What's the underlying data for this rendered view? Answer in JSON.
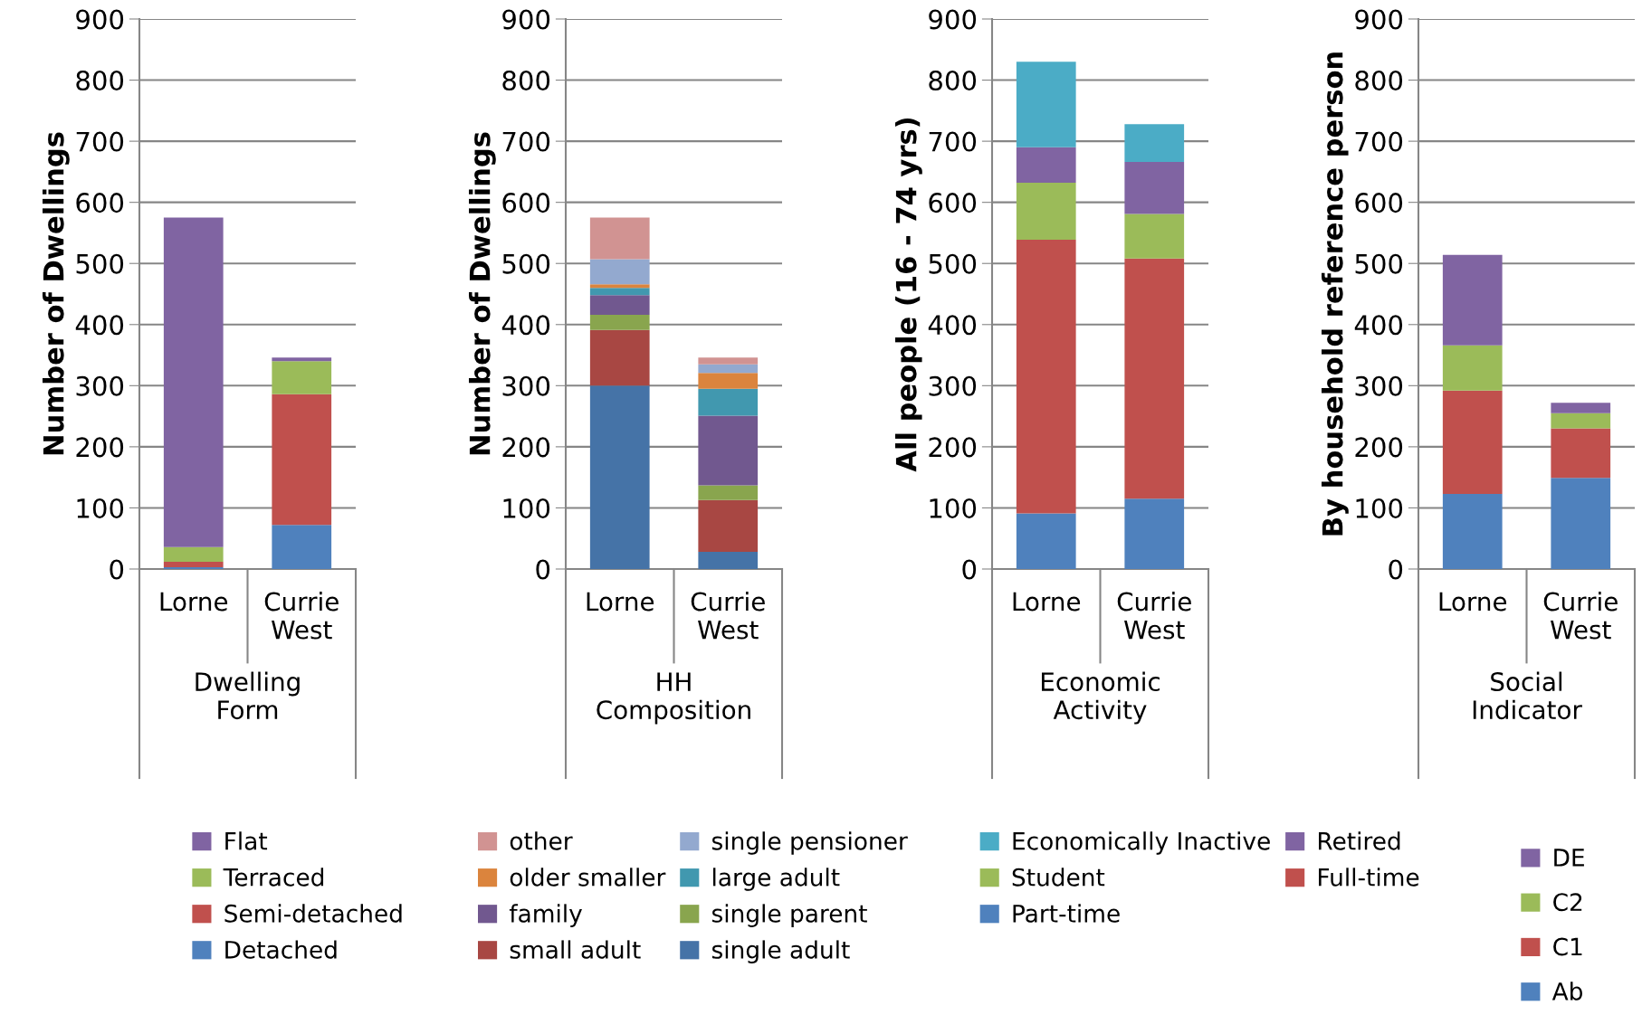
{
  "chart_data": [
    {
      "type": "bar",
      "stacked": true,
      "xlabel": "Dwelling Form",
      "ylabel": "Number of Dwellings",
      "categories": [
        "Lorne",
        "Currie West"
      ],
      "ylim": [
        0,
        900
      ],
      "yticks": [
        0,
        100,
        200,
        300,
        400,
        500,
        600,
        700,
        800,
        900
      ],
      "grid": "y",
      "legend": "bottom",
      "series": [
        {
          "name": "Detached",
          "color": "#4f81bd",
          "values": [
            3,
            72
          ]
        },
        {
          "name": "Semi-detached",
          "color": "#c0504d",
          "values": [
            9,
            214
          ]
        },
        {
          "name": "Terraced",
          "color": "#9bbb59",
          "values": [
            24,
            54
          ]
        },
        {
          "name": "Flat",
          "color": "#8064a2",
          "values": [
            539,
            6
          ]
        }
      ]
    },
    {
      "type": "bar",
      "stacked": true,
      "xlabel": "HH Composition",
      "ylabel": "Number of Dwellings",
      "categories": [
        "Lorne",
        "Currie West"
      ],
      "ylim": [
        0,
        900
      ],
      "yticks": [
        0,
        100,
        200,
        300,
        400,
        500,
        600,
        700,
        800,
        900
      ],
      "grid": "y",
      "legend": "bottom",
      "series": [
        {
          "name": "single adult",
          "color": "#4573a7",
          "values": [
            300,
            28
          ]
        },
        {
          "name": "small adult",
          "color": "#a84743",
          "values": [
            91,
            85
          ]
        },
        {
          "name": "single parent",
          "color": "#89a54e",
          "values": [
            25,
            24
          ]
        },
        {
          "name": "family",
          "color": "#71588f",
          "values": [
            32,
            114
          ]
        },
        {
          "name": "large adult",
          "color": "#4198af",
          "values": [
            12,
            44
          ]
        },
        {
          "name": "older smaller",
          "color": "#db843d",
          "values": [
            6,
            26
          ]
        },
        {
          "name": "single pensioner",
          "color": "#93a9cf",
          "values": [
            41,
            14
          ]
        },
        {
          "name": "other",
          "color": "#d19392",
          "values": [
            68,
            11
          ]
        }
      ]
    },
    {
      "type": "bar",
      "stacked": true,
      "xlabel": "Economic Activity",
      "ylabel": "All people (16 - 74 yrs)",
      "categories": [
        "Lorne",
        "Currie West"
      ],
      "ylim": [
        0,
        900
      ],
      "yticks": [
        0,
        100,
        200,
        300,
        400,
        500,
        600,
        700,
        800,
        900
      ],
      "grid": "y",
      "legend": "bottom",
      "series": [
        {
          "name": "Part-time",
          "color": "#4f81bd",
          "values": [
            91,
            115
          ]
        },
        {
          "name": "Full-time",
          "color": "#c0504d",
          "values": [
            448,
            393
          ]
        },
        {
          "name": "Student",
          "color": "#9bbb59",
          "values": [
            93,
            73
          ]
        },
        {
          "name": "Retired",
          "color": "#8064a2",
          "values": [
            58,
            85
          ]
        },
        {
          "name": "Economically Inactive",
          "color": "#4bacc6",
          "values": [
            140,
            62
          ]
        }
      ]
    },
    {
      "type": "bar",
      "stacked": true,
      "xlabel": "Social Indicator",
      "ylabel": "By household reference person",
      "categories": [
        "Lorne",
        "Currie West"
      ],
      "ylim": [
        0,
        900
      ],
      "yticks": [
        0,
        100,
        200,
        300,
        400,
        500,
        600,
        700,
        800,
        900
      ],
      "grid": "y",
      "legend": "bottom",
      "series": [
        {
          "name": "Ab",
          "color": "#4f81bd",
          "values": [
            123,
            149
          ]
        },
        {
          "name": "C1",
          "color": "#c0504d",
          "values": [
            169,
            81
          ]
        },
        {
          "name": "C2",
          "color": "#9bbb59",
          "values": [
            74,
            25
          ]
        },
        {
          "name": "DE",
          "color": "#8064a2",
          "values": [
            148,
            17
          ]
        }
      ]
    }
  ]
}
